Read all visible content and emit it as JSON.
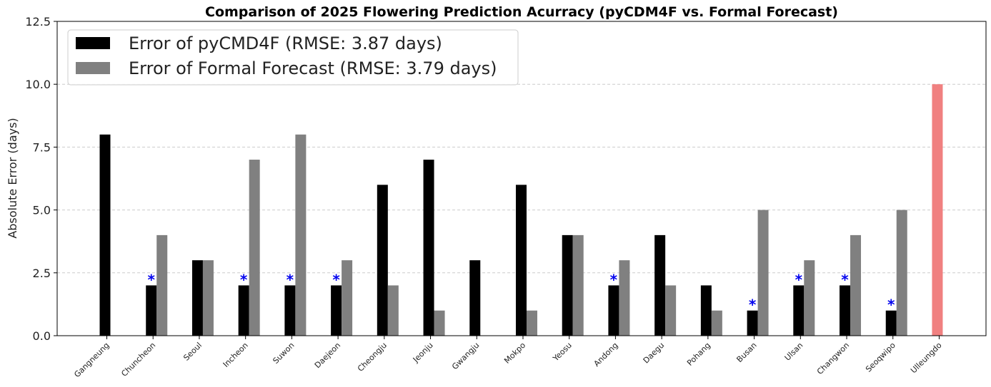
{
  "chart_data": {
    "type": "bar",
    "title": "Comparison of 2025 Flowering Prediction Acurracy (pyCDM4F vs. Formal Forecast)",
    "xlabel": "",
    "ylabel": "Absolute Error (days)",
    "ylim": [
      0,
      12.5
    ],
    "yticks": [
      "0.0",
      "2.5",
      "5.0",
      "7.5",
      "10.0",
      "12.5"
    ],
    "grid": "horizontal dashed",
    "legend_placement": "top-left",
    "categories": [
      "Gangneung",
      "Chuncheon",
      "Seoul",
      "Incheon",
      "Suwon",
      "Daejeon",
      "Cheongju",
      "Jeonju",
      "Gwangju",
      "Mokpo",
      "Yeosu",
      "Andong",
      "Daegu",
      "Pohang",
      "Busan",
      "Ulsan",
      "Changwon",
      "Seoqwipo",
      "Ulleungdo"
    ],
    "series": [
      {
        "name": "Error of pyCMD4F (RMSE: 3.87 days)",
        "color": "#000000",
        "values": [
          8,
          2,
          3,
          2,
          2,
          2,
          6,
          7,
          3,
          6,
          4,
          2,
          4,
          2,
          1,
          2,
          2,
          1,
          null
        ]
      },
      {
        "name": "Error of Formal Forecast (RMSE: 3.79 days)",
        "color": "#808080",
        "values": [
          null,
          4,
          3,
          7,
          8,
          3,
          2,
          1,
          null,
          1,
          4,
          3,
          2,
          1,
          5,
          3,
          4,
          5,
          null
        ]
      }
    ],
    "highlight": {
      "category": "Ulleungdo",
      "value": 10,
      "color": "#f08080"
    },
    "markers": {
      "symbol": "*",
      "color": "#0000ee",
      "categories": [
        "Chuncheon",
        "Incheon",
        "Suwon",
        "Daejeon",
        "Andong",
        "Busan",
        "Ulsan",
        "Changwon",
        "Seoqwipo"
      ]
    }
  }
}
